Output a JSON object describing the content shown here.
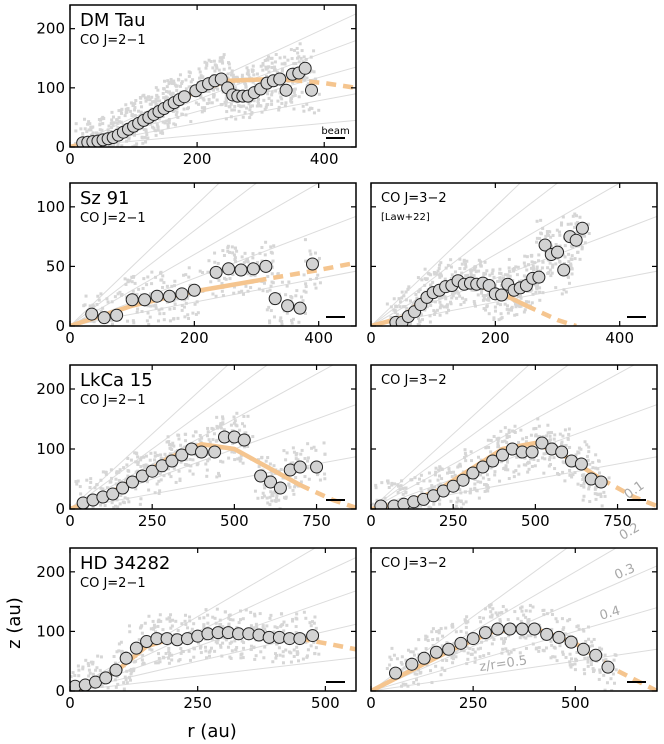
{
  "xlabel": "r (au)",
  "ylabel": "z (au)",
  "colors": {
    "fit": "#f5c58f",
    "marker_face": "#d3d3d3",
    "marker_edge": "#222222",
    "raw": "#d6d6d6",
    "zr_lines": "#dcdcdc",
    "zr_text": "#a8a8a8"
  },
  "chart_data": [
    {
      "id": "dmtau-21",
      "type": "scatter",
      "title": "DM Tau",
      "subtitle": "CO J=2−1",
      "beam_label": "beam",
      "xlim": [
        0,
        450
      ],
      "ylim": [
        0,
        240
      ],
      "xticks": [
        0,
        200,
        400
      ],
      "yticks": [
        0,
        100,
        200
      ],
      "show_yticklabels": true,
      "show_xticklabels": true,
      "zr_lines": [
        0.1,
        0.2,
        0.3,
        0.4,
        0.5
      ],
      "x": [
        20,
        28,
        36,
        44,
        52,
        60,
        68,
        76,
        84,
        92,
        100,
        108,
        116,
        124,
        132,
        140,
        148,
        156,
        164,
        172,
        180,
        198,
        208,
        218,
        228,
        238,
        248,
        256,
        264,
        272,
        280,
        290,
        300,
        310,
        320,
        330,
        340,
        350,
        360,
        370,
        380
      ],
      "y": [
        7,
        8,
        9,
        10,
        12,
        14,
        16,
        20,
        25,
        30,
        35,
        40,
        45,
        50,
        55,
        60,
        65,
        70,
        75,
        80,
        85,
        95,
        102,
        107,
        112,
        115,
        100,
        88,
        86,
        86,
        86,
        92,
        98,
        108,
        112,
        115,
        96,
        123,
        125,
        133,
        96
      ],
      "fit_x": [
        0,
        50,
        100,
        150,
        200,
        250,
        300,
        350,
        400,
        450
      ],
      "fit_y": [
        0,
        13,
        36,
        66,
        95,
        112,
        114,
        113,
        108,
        100
      ],
      "fit_solid_until": 380
    },
    {
      "id": "sz91-21",
      "type": "scatter",
      "title": "Sz 91",
      "subtitle": "CO J=2−1",
      "xlim": [
        0,
        460
      ],
      "ylim": [
        0,
        120
      ],
      "xticks": [
        0,
        200,
        400
      ],
      "yticks": [
        0,
        50,
        100
      ],
      "show_yticklabels": true,
      "show_xticklabels": true,
      "zr_lines": [
        0.1,
        0.2,
        0.3,
        0.4,
        0.5
      ],
      "x": [
        35,
        55,
        75,
        100,
        120,
        140,
        160,
        180,
        200,
        235,
        255,
        275,
        295,
        315,
        330,
        350,
        370,
        390
      ],
      "y": [
        10,
        7,
        9,
        22,
        22,
        25,
        25,
        27,
        30,
        45,
        48,
        47,
        48,
        50,
        23,
        17,
        15,
        52
      ],
      "fit_x": [
        0,
        100,
        200,
        300,
        400,
        460
      ],
      "fit_y": [
        0,
        17,
        29,
        38,
        47,
        53
      ],
      "fit_solid_until": 380
    },
    {
      "id": "sz91-32",
      "type": "scatter",
      "subtitle": "CO J=3−2",
      "note": "[Law+22]",
      "xlim": [
        0,
        460
      ],
      "ylim": [
        0,
        120
      ],
      "xticks": [
        0,
        200,
        400
      ],
      "yticks": [
        0,
        50,
        100
      ],
      "show_yticklabels": false,
      "show_xticklabels": true,
      "zr_lines": [
        0.1,
        0.2,
        0.3,
        0.4,
        0.5
      ],
      "x": [
        40,
        50,
        60,
        70,
        80,
        90,
        100,
        110,
        120,
        130,
        140,
        150,
        160,
        170,
        180,
        190,
        200,
        210,
        220,
        230,
        240,
        250,
        260,
        270,
        280,
        290,
        300,
        310,
        320,
        330,
        340
      ],
      "y": [
        3,
        3,
        8,
        12,
        18,
        24,
        28,
        30,
        33,
        34,
        38,
        35,
        36,
        35,
        36,
        34,
        27,
        26,
        35,
        30,
        32,
        34,
        40,
        41,
        68,
        60,
        62,
        47,
        75,
        72,
        82
      ],
      "fit_x": [
        0,
        50,
        100,
        150,
        200,
        250,
        300,
        330
      ],
      "fit_y": [
        0,
        7,
        30,
        36,
        30,
        17,
        5,
        0
      ],
      "fit_solid_until": 260
    },
    {
      "id": "lkca15-21",
      "type": "scatter",
      "title": "LkCa 15",
      "subtitle": "CO J=2−1",
      "xlim": [
        0,
        870
      ],
      "ylim": [
        0,
        240
      ],
      "xticks": [
        0,
        250,
        500,
        750
      ],
      "yticks": [
        0,
        100,
        200
      ],
      "show_yticklabels": true,
      "show_xticklabels": true,
      "zr_lines": [
        0.1,
        0.2,
        0.3,
        0.4,
        0.5
      ],
      "x": [
        40,
        70,
        100,
        130,
        160,
        190,
        220,
        250,
        280,
        310,
        340,
        370,
        400,
        440,
        470,
        500,
        530,
        580,
        610,
        640,
        670,
        700,
        750
      ],
      "y": [
        10,
        15,
        20,
        25,
        35,
        45,
        55,
        63,
        72,
        80,
        90,
        100,
        95,
        95,
        120,
        120,
        115,
        55,
        45,
        35,
        65,
        70,
        70
      ],
      "fit_x": [
        0,
        100,
        200,
        300,
        400,
        500,
        600,
        700,
        800,
        870
      ],
      "fit_y": [
        0,
        20,
        50,
        85,
        108,
        100,
        70,
        40,
        15,
        2
      ],
      "fit_solid_until": 700
    },
    {
      "id": "lkca15-32",
      "type": "scatter",
      "subtitle": "CO J=3−2",
      "xlim": [
        0,
        870
      ],
      "ylim": [
        0,
        240
      ],
      "xticks": [
        0,
        250,
        500,
        750
      ],
      "yticks": [
        0,
        100,
        200
      ],
      "show_yticklabels": false,
      "show_xticklabels": true,
      "zr_lines": [
        0.1,
        0.2,
        0.3,
        0.4,
        0.5
      ],
      "x": [
        30,
        70,
        100,
        130,
        160,
        190,
        220,
        250,
        280,
        310,
        340,
        370,
        400,
        430,
        460,
        490,
        520,
        550,
        580,
        610,
        640,
        670,
        700
      ],
      "y": [
        5,
        5,
        8,
        12,
        16,
        22,
        30,
        38,
        48,
        60,
        70,
        80,
        90,
        100,
        95,
        95,
        110,
        100,
        95,
        80,
        75,
        50,
        45
      ],
      "fit_x": [
        0,
        100,
        200,
        300,
        400,
        500,
        600,
        700,
        800,
        870
      ],
      "fit_y": [
        0,
        10,
        30,
        65,
        100,
        110,
        85,
        50,
        20,
        5
      ],
      "fit_solid_until": 700
    },
    {
      "id": "hd34282-21",
      "type": "scatter",
      "title": "HD 34282",
      "subtitle": "CO J=2−1",
      "xlim": [
        0,
        560
      ],
      "ylim": [
        0,
        240
      ],
      "xticks": [
        0,
        250,
        500
      ],
      "yticks": [
        0,
        100,
        200
      ],
      "show_yticklabels": true,
      "show_xticklabels": true,
      "zr_lines": [
        0.1,
        0.2,
        0.3,
        0.4,
        0.5
      ],
      "x": [
        10,
        30,
        50,
        70,
        90,
        110,
        130,
        150,
        170,
        190,
        210,
        230,
        250,
        270,
        290,
        310,
        330,
        350,
        370,
        390,
        410,
        430,
        450,
        475
      ],
      "y": [
        8,
        10,
        15,
        22,
        35,
        55,
        72,
        83,
        88,
        88,
        86,
        88,
        92,
        96,
        98,
        98,
        96,
        96,
        94,
        90,
        90,
        88,
        88,
        93
      ],
      "fit_x": [
        0,
        50,
        100,
        150,
        200,
        250,
        300,
        350,
        400,
        450,
        500,
        560
      ],
      "fit_y": [
        0,
        12,
        40,
        75,
        88,
        92,
        100,
        98,
        92,
        88,
        80,
        70
      ],
      "fit_solid_until": 470
    },
    {
      "id": "hd34282-32",
      "type": "scatter",
      "subtitle": "CO J=3−2",
      "xlim": [
        0,
        700
      ],
      "ylim": [
        0,
        240
      ],
      "xticks": [
        0,
        250,
        500
      ],
      "yticks": [
        0,
        100,
        200
      ],
      "show_yticklabels": false,
      "show_xticklabels": true,
      "zr_lines": [
        0.1,
        0.2,
        0.3,
        0.4,
        0.5
      ],
      "zr_labels": [
        "z/r=0.5",
        "0.4",
        "0.3",
        "0.2",
        "0.1"
      ],
      "x": [
        60,
        100,
        130,
        160,
        190,
        220,
        250,
        280,
        310,
        340,
        370,
        400,
        430,
        460,
        490,
        520,
        550,
        580
      ],
      "y": [
        30,
        45,
        55,
        65,
        70,
        80,
        88,
        98,
        104,
        104,
        104,
        104,
        95,
        90,
        82,
        70,
        60,
        40
      ],
      "fit_x": [
        0,
        100,
        200,
        300,
        400,
        500,
        600,
        700
      ],
      "fit_y": [
        0,
        35,
        70,
        100,
        105,
        80,
        35,
        0
      ],
      "fit_solid_until": 580
    }
  ]
}
